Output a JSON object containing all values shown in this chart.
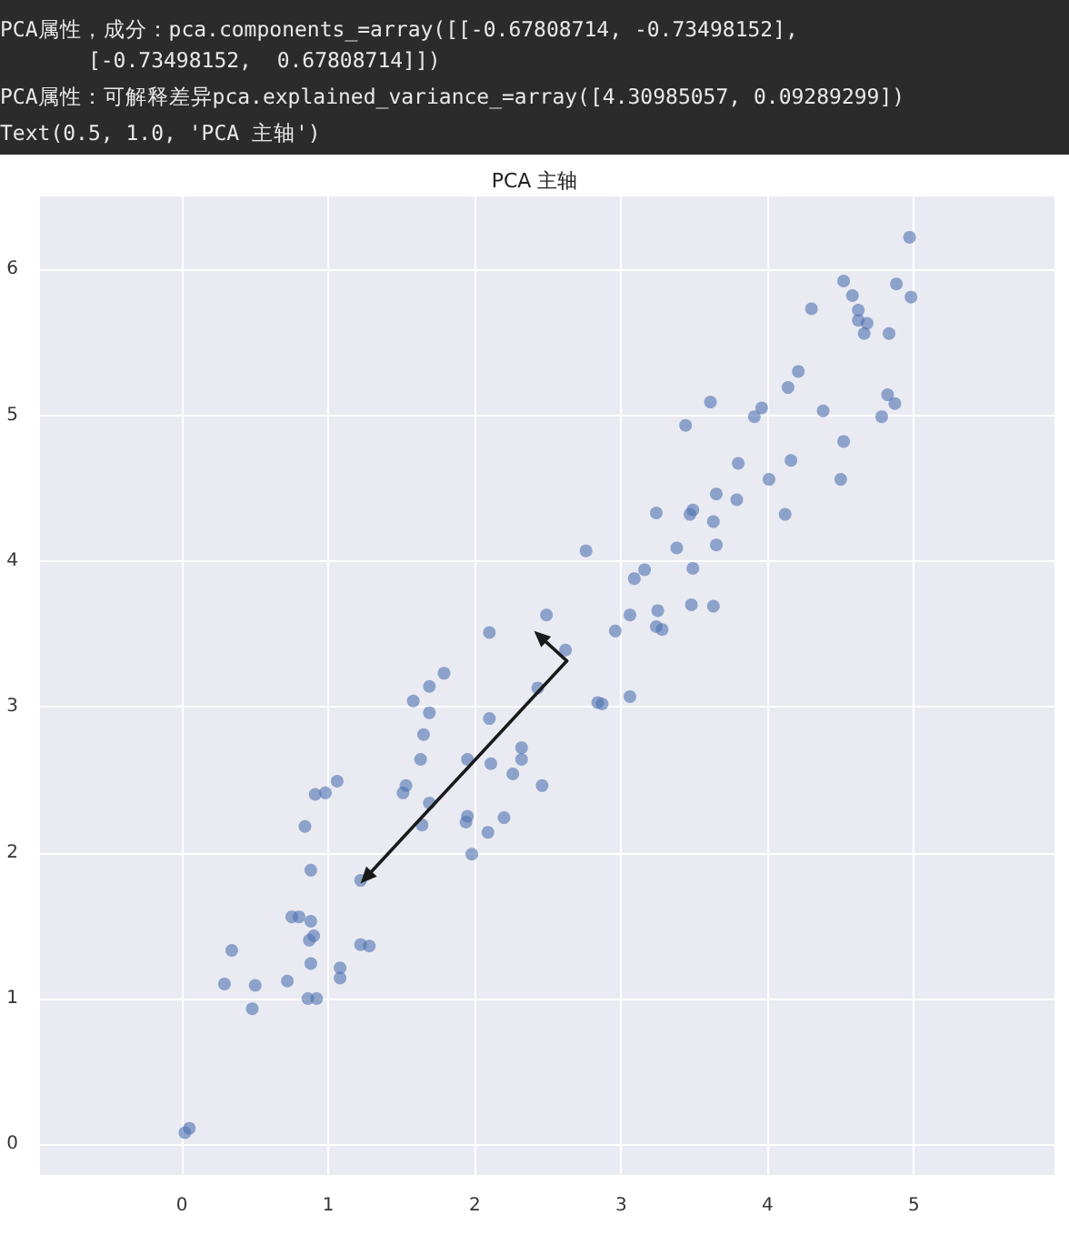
{
  "chart_data": {
    "type": "scatter",
    "title": "PCA 主轴",
    "annotations": [
      "PCA属性，成分：pca.components_=array([[-0.67808714, -0.73498152],\n       [-0.73498152,  0.67808714]])",
      "PCA属性：可解释差异pca.explained_variance_=array([4.30985057, 0.09289299])",
      "Text(0.5, 1.0, 'PCA 主轴')"
    ],
    "xlim": [
      -0.97,
      5.96
    ],
    "ylim": [
      -0.21,
      6.5
    ],
    "xticks": [
      0,
      1,
      2,
      3,
      4,
      5
    ],
    "yticks": [
      0,
      1,
      2,
      3,
      4,
      5,
      6
    ],
    "grid": true,
    "marker": "circle",
    "series": [
      {
        "color": "#4c72b0",
        "x": [
          4.97,
          4.52,
          4.88,
          4.58,
          4.98,
          4.3,
          4.62,
          4.62,
          4.68,
          4.66,
          4.83,
          4.21,
          4.14,
          4.82,
          4.87,
          3.61,
          3.96,
          3.91,
          4.38,
          4.78,
          3.44,
          4.52,
          3.8,
          4.16,
          4.01,
          4.5,
          3.65,
          3.79,
          3.24,
          3.47,
          3.49,
          3.63,
          4.12,
          3.38,
          3.65,
          2.76,
          3.49,
          3.16,
          3.09,
          3.48,
          3.63,
          3.06,
          3.25,
          2.96,
          3.24,
          3.28,
          2.62,
          2.49,
          2.1,
          2.84,
          2.87,
          3.06,
          1.79,
          1.69,
          1.58,
          2.43,
          1.69,
          2.1,
          1.65,
          2.32,
          1.63,
          1.95,
          2.11,
          2.32,
          2.26,
          2.46,
          1.06,
          0.91,
          0.98,
          1.51,
          1.53,
          1.69,
          0.84,
          1.64,
          1.94,
          1.95,
          2.2,
          2.09,
          1.98,
          0.88,
          1.22,
          0.75,
          0.8,
          0.88,
          0.9,
          0.87,
          0.34,
          1.22,
          1.28,
          0.88,
          1.08,
          1.08,
          0.29,
          0.5,
          0.72,
          0.86,
          0.92,
          0.48,
          0.02,
          0.05
        ],
        "values": [
          6.22,
          5.92,
          5.9,
          5.82,
          5.81,
          5.73,
          5.72,
          5.65,
          5.63,
          5.56,
          5.56,
          5.3,
          5.19,
          5.14,
          5.08,
          5.09,
          5.05,
          4.99,
          5.03,
          4.99,
          4.93,
          4.82,
          4.67,
          4.69,
          4.56,
          4.56,
          4.46,
          4.42,
          4.33,
          4.32,
          4.35,
          4.27,
          4.32,
          4.09,
          4.11,
          4.07,
          3.95,
          3.94,
          3.88,
          3.7,
          3.69,
          3.63,
          3.66,
          3.52,
          3.55,
          3.53,
          3.39,
          3.63,
          3.51,
          3.03,
          3.02,
          3.07,
          3.23,
          3.14,
          3.04,
          3.13,
          2.96,
          2.92,
          2.81,
          2.72,
          2.64,
          2.64,
          2.61,
          2.64,
          2.54,
          2.46,
          2.49,
          2.4,
          2.41,
          2.41,
          2.46,
          2.34,
          2.18,
          2.19,
          2.21,
          2.25,
          2.24,
          2.14,
          1.99,
          1.88,
          1.81,
          1.56,
          1.56,
          1.53,
          1.43,
          1.4,
          1.33,
          1.37,
          1.36,
          1.24,
          1.21,
          1.14,
          1.1,
          1.09,
          1.12,
          1.0,
          1.0,
          0.93,
          0.08,
          0.11
        ]
      }
    ]
  }
}
